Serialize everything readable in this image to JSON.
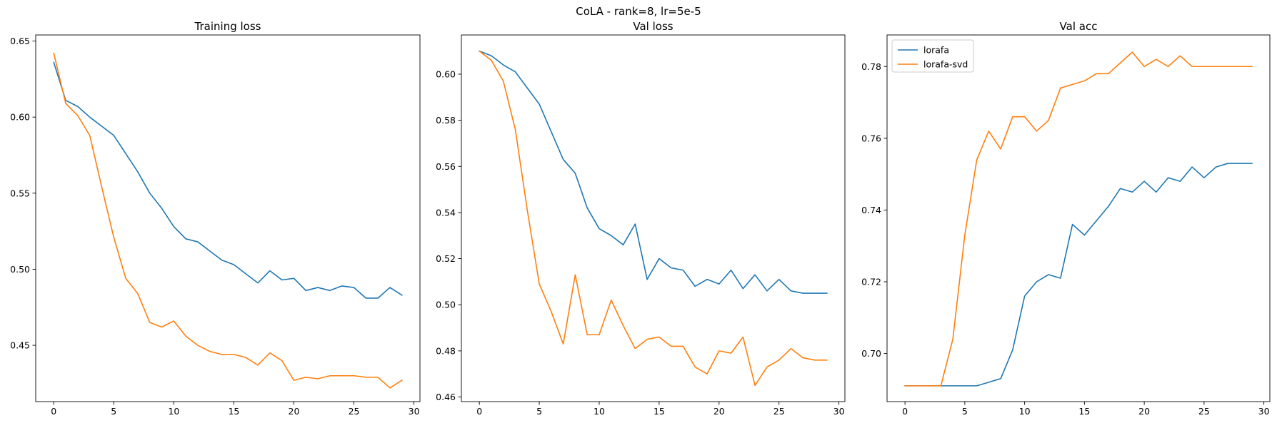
{
  "figure_title": "CoLA - rank=8, lr=5e-5",
  "colors": {
    "lorafa": "#1f77b4",
    "lorafa-svd": "#ff7f0e"
  },
  "chart_data": [
    {
      "type": "line",
      "title": "Training loss",
      "xlabel": "",
      "ylabel": "",
      "xlim": [
        -1.5,
        30.5
      ],
      "ylim": [
        0.413,
        0.654
      ],
      "xticks": [
        0,
        5,
        10,
        15,
        20,
        25,
        30
      ],
      "yticks": [
        0.45,
        0.5,
        0.55,
        0.6,
        0.65
      ],
      "ytick_labels": [
        "0.45",
        "0.50",
        "0.55",
        "0.60",
        "0.65"
      ],
      "grid": false,
      "legend": null,
      "x": [
        0,
        1,
        2,
        3,
        4,
        5,
        6,
        7,
        8,
        9,
        10,
        11,
        12,
        13,
        14,
        15,
        16,
        17,
        18,
        19,
        20,
        21,
        22,
        23,
        24,
        25,
        26,
        27,
        28,
        29
      ],
      "series": [
        {
          "name": "lorafa",
          "values": [
            0.636,
            0.611,
            0.607,
            0.6,
            0.594,
            0.588,
            0.576,
            0.564,
            0.55,
            0.54,
            0.528,
            0.52,
            0.518,
            0.512,
            0.506,
            0.503,
            0.497,
            0.491,
            0.499,
            0.493,
            0.494,
            0.486,
            0.488,
            0.486,
            0.489,
            0.488,
            0.481,
            0.481,
            0.488,
            0.483
          ]
        },
        {
          "name": "lorafa-svd",
          "values": [
            0.642,
            0.609,
            0.601,
            0.588,
            0.554,
            0.521,
            0.494,
            0.484,
            0.465,
            0.462,
            0.466,
            0.456,
            0.45,
            0.446,
            0.444,
            0.444,
            0.442,
            0.437,
            0.445,
            0.44,
            0.427,
            0.429,
            0.428,
            0.43,
            0.43,
            0.43,
            0.429,
            0.429,
            0.422,
            0.427
          ]
        }
      ]
    },
    {
      "type": "line",
      "title": "Val loss",
      "xlabel": "",
      "ylabel": "",
      "xlim": [
        -1.5,
        30.5
      ],
      "ylim": [
        0.458,
        0.617
      ],
      "xticks": [
        0,
        5,
        10,
        15,
        20,
        25,
        30
      ],
      "yticks": [
        0.46,
        0.48,
        0.5,
        0.52,
        0.54,
        0.56,
        0.58,
        0.6
      ],
      "ytick_labels": [
        "0.46",
        "0.48",
        "0.50",
        "0.52",
        "0.54",
        "0.56",
        "0.58",
        "0.60"
      ],
      "grid": false,
      "legend": null,
      "x": [
        0,
        1,
        2,
        3,
        4,
        5,
        6,
        7,
        8,
        9,
        10,
        11,
        12,
        13,
        14,
        15,
        16,
        17,
        18,
        19,
        20,
        21,
        22,
        23,
        24,
        25,
        26,
        27,
        28,
        29
      ],
      "series": [
        {
          "name": "lorafa",
          "values": [
            0.61,
            0.608,
            0.604,
            0.601,
            0.594,
            0.587,
            0.575,
            0.563,
            0.557,
            0.542,
            0.533,
            0.53,
            0.526,
            0.535,
            0.511,
            0.52,
            0.516,
            0.515,
            0.508,
            0.511,
            0.509,
            0.515,
            0.507,
            0.513,
            0.506,
            0.511,
            0.506,
            0.505,
            0.505,
            0.505
          ]
        },
        {
          "name": "lorafa-svd",
          "values": [
            0.61,
            0.606,
            0.597,
            0.576,
            0.541,
            0.509,
            0.497,
            0.483,
            0.513,
            0.487,
            0.487,
            0.502,
            0.491,
            0.481,
            0.485,
            0.486,
            0.482,
            0.482,
            0.473,
            0.47,
            0.48,
            0.479,
            0.486,
            0.465,
            0.473,
            0.476,
            0.481,
            0.477,
            0.476,
            0.476
          ]
        }
      ]
    },
    {
      "type": "line",
      "title": "Val acc",
      "xlabel": "",
      "ylabel": "",
      "xlim": [
        -1.5,
        30.5
      ],
      "ylim": [
        0.6866,
        0.7888
      ],
      "xticks": [
        0,
        5,
        10,
        15,
        20,
        25,
        30
      ],
      "yticks": [
        0.7,
        0.72,
        0.74,
        0.76,
        0.78
      ],
      "ytick_labels": [
        "0.70",
        "0.72",
        "0.74",
        "0.76",
        "0.78"
      ],
      "grid": false,
      "legend": "upper left",
      "x": [
        0,
        1,
        2,
        3,
        4,
        5,
        6,
        7,
        8,
        9,
        10,
        11,
        12,
        13,
        14,
        15,
        16,
        17,
        18,
        19,
        20,
        21,
        22,
        23,
        24,
        25,
        26,
        27,
        28,
        29
      ],
      "series": [
        {
          "name": "lorafa",
          "values": [
            0.691,
            0.691,
            0.691,
            0.691,
            0.691,
            0.691,
            0.691,
            0.692,
            0.693,
            0.701,
            0.716,
            0.72,
            0.722,
            0.721,
            0.736,
            0.733,
            0.737,
            0.741,
            0.746,
            0.745,
            0.748,
            0.745,
            0.749,
            0.748,
            0.752,
            0.749,
            0.752,
            0.753,
            0.753,
            0.753
          ]
        },
        {
          "name": "lorafa-svd",
          "values": [
            0.691,
            0.691,
            0.691,
            0.691,
            0.704,
            0.733,
            0.754,
            0.762,
            0.757,
            0.766,
            0.766,
            0.762,
            0.765,
            0.774,
            0.775,
            0.776,
            0.778,
            0.778,
            0.781,
            0.784,
            0.78,
            0.782,
            0.78,
            0.783,
            0.78,
            0.78,
            0.78,
            0.78,
            0.78,
            0.78
          ]
        }
      ]
    }
  ]
}
